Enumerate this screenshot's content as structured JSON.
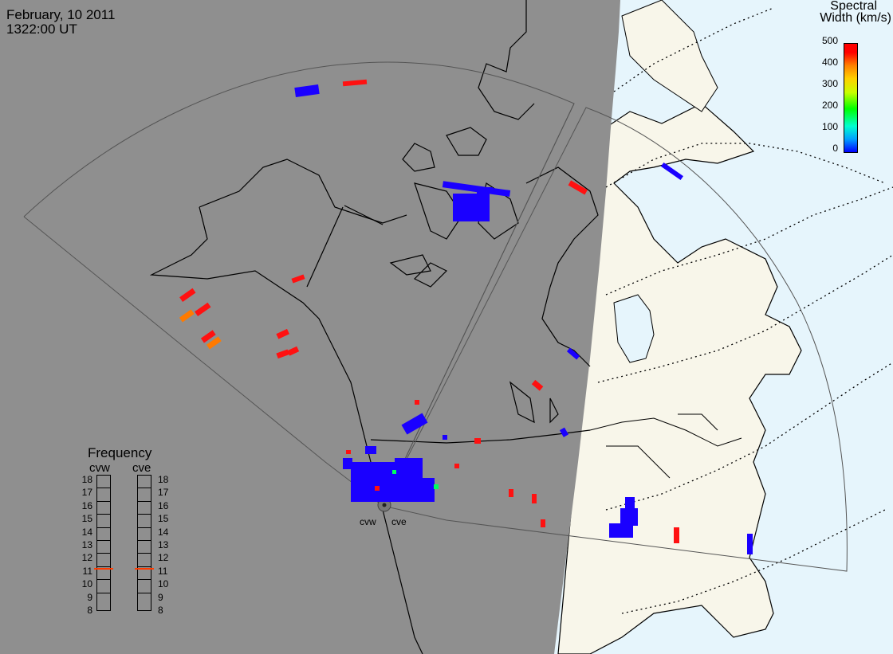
{
  "header": {
    "date": "February, 10 2011",
    "time": "1322:00 UT"
  },
  "legend": {
    "title_line1": "Spectral",
    "title_line2": "Width (km/s)",
    "ticks": [
      "500",
      "400",
      "300",
      "200",
      "100",
      "0"
    ],
    "colors": {
      "min": "#0000ff",
      "mid": "#00ff00",
      "max": "#ff0000"
    }
  },
  "frequency": {
    "title": "Frequency",
    "radar_left": "cvw",
    "radar_right": "cve",
    "scale": [
      "18",
      "17",
      "16",
      "15",
      "14",
      "13",
      "12",
      "11",
      "10",
      "9",
      "8"
    ],
    "cvw_value_mhz": 10.8,
    "cve_value_mhz": 10.8
  },
  "stations": {
    "left": "cvw",
    "right": "cve"
  },
  "colors": {
    "night": "#8f8f8f",
    "day_land": "#f8f6ea",
    "day_ocean": "#e6f5fc",
    "coast": "#000000",
    "fov": "#555555",
    "scatter_low": "#1a00ff",
    "scatter_high": "#ff1111",
    "scatter_mid": "#ff7a00"
  }
}
